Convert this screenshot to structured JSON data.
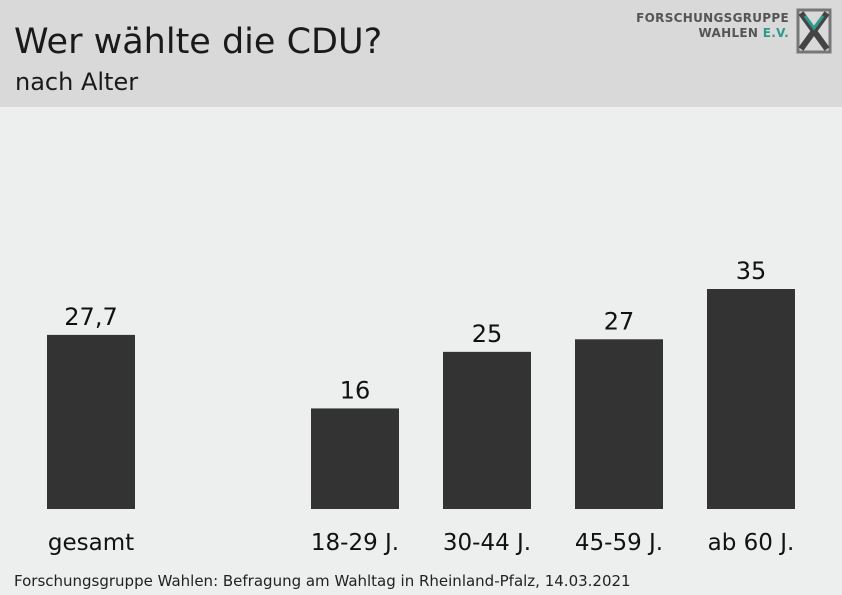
{
  "header": {
    "title": "Wer wählte die CDU?",
    "subtitle": "nach Alter",
    "logo_line1": "FORSCHUNGSGRUPPE",
    "logo_line2_main": "WAHLEN",
    "logo_line2_accent": "E.V."
  },
  "footer": {
    "source": "Forschungsgruppe Wahlen: Befragung am Wahltag in Rheinland-Pfalz, 14.03.2021"
  },
  "colors": {
    "bar": "#333333",
    "header_bg": "#d9d9d9",
    "plot_bg": "#ecefed",
    "logo_accent": "#2f9a8c"
  },
  "chart_data": {
    "type": "bar",
    "title": "Wer wählte die CDU?",
    "subtitle": "nach Alter",
    "categories": [
      "gesamt",
      "18-29 J.",
      "30-44 J.",
      "45-59 J.",
      "ab 60 J."
    ],
    "values": [
      27.7,
      16,
      25,
      27,
      35
    ],
    "value_labels": [
      "27,7",
      "16",
      "25",
      "27",
      "35"
    ],
    "xlabel": "",
    "ylabel": "",
    "ylim": [
      0,
      35
    ],
    "grid": false,
    "legend": "none"
  }
}
